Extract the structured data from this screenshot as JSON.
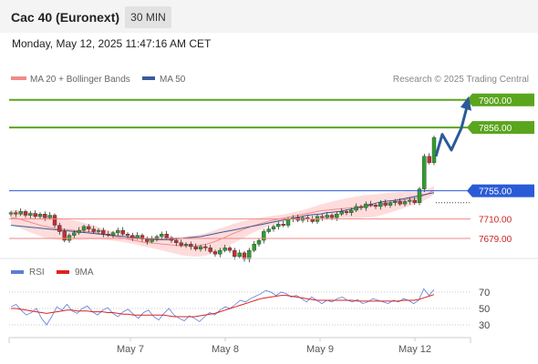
{
  "header": {
    "instrument": "Cac 40 (Euronext)",
    "timeframe": "30 MIN",
    "datetime": "Monday, May 12, 2025 11:47:16 AM CET"
  },
  "colors": {
    "bollinger_band": "#ffd6d6",
    "ma20": "#f28a8a",
    "ma50": "#3a5a9a",
    "candle_up": "#2e9e2e",
    "candle_down": "#c03030",
    "target_green": "#5aa51e",
    "pivot_blue": "#2a5bd7",
    "support_red": "#cc2222",
    "forecast_arrow": "#2a5a9a",
    "rsi_line": "#5b7fd6",
    "rsi_ma_line": "#dd2222"
  },
  "chart_data": [
    {
      "type": "candlestick",
      "legend_position": "top-left",
      "legend": [
        {
          "name": "MA 20 + Bollinger Bands",
          "color": "#f28a8a"
        },
        {
          "name": "MA 50",
          "color": "#3a5a9a"
        }
      ],
      "credit": "Research © 2025 Trading Central",
      "x_ticks": [
        "May 7",
        "May 8",
        "May 9",
        "May 12"
      ],
      "y_domain": [
        7650,
        7920
      ],
      "levels": [
        {
          "label": "7900.00",
          "value": 7900,
          "kind": "target",
          "style": "green-box"
        },
        {
          "label": "7856.00",
          "value": 7856,
          "kind": "target",
          "style": "green-box"
        },
        {
          "label": "7755.00",
          "value": 7755,
          "kind": "pivot",
          "style": "blue-box"
        },
        {
          "label": "7710.00",
          "value": 7710,
          "kind": "support",
          "style": "red-text"
        },
        {
          "label": "7679.00",
          "value": 7679,
          "kind": "support",
          "style": "red-text"
        }
      ],
      "candle_closes": [
        7720,
        7718,
        7722,
        7716,
        7719,
        7714,
        7718,
        7712,
        7716,
        7700,
        7690,
        7676,
        7684,
        7688,
        7692,
        7698,
        7694,
        7690,
        7692,
        7686,
        7684,
        7688,
        7692,
        7686,
        7684,
        7680,
        7684,
        7678,
        7674,
        7678,
        7682,
        7686,
        7680,
        7676,
        7672,
        7668,
        7670,
        7666,
        7662,
        7666,
        7664,
        7658,
        7654,
        7660,
        7664,
        7660,
        7650,
        7656,
        7646,
        7660,
        7670,
        7676,
        7690,
        7694,
        7698,
        7702,
        7700,
        7710,
        7712,
        7708,
        7712,
        7710,
        7706,
        7714,
        7712,
        7716,
        7712,
        7718,
        7722,
        7720,
        7724,
        7730,
        7728,
        7734,
        7732,
        7730,
        7736,
        7732,
        7736,
        7738,
        7734,
        7738,
        7740,
        7736,
        7758,
        7810,
        7800,
        7840
      ],
      "ma20": [
        7712,
        7711,
        7708,
        7705,
        7702,
        7699,
        7697,
        7695,
        7694,
        7693,
        7692,
        7691,
        7690,
        7689,
        7687,
        7685,
        7683,
        7681,
        7679,
        7677,
        7675,
        7673,
        7672,
        7671,
        7670,
        7669,
        7668,
        7667,
        7667,
        7667,
        7668,
        7670,
        7673,
        7677,
        7681,
        7686,
        7690,
        7694,
        7698,
        7701,
        7704,
        7707,
        7709,
        7711,
        7713,
        7715,
        7717,
        7719,
        7721,
        7723,
        7724,
        7725,
        7726,
        7727,
        7728,
        7729,
        7730,
        7731,
        7732,
        7734,
        7736,
        7738,
        7740,
        7742,
        7743,
        7746,
        7750,
        7756
      ],
      "ma50": [
        7700,
        7699,
        7698,
        7697,
        7696,
        7695,
        7694,
        7693,
        7692,
        7691,
        7690,
        7689,
        7688,
        7687,
        7686,
        7685,
        7684,
        7683,
        7682,
        7681,
        7680,
        7679,
        7678,
        7677,
        7677,
        7677,
        7678,
        7679,
        7680,
        7681,
        7682,
        7684,
        7686,
        7688,
        7690,
        7692,
        7694,
        7696,
        7698,
        7700,
        7702,
        7704,
        7706,
        7708,
        7710,
        7712,
        7714,
        7716,
        7717,
        7718,
        7720,
        7721,
        7722,
        7724,
        7726,
        7728,
        7730,
        7733,
        7736,
        7738,
        7739,
        7740,
        7742,
        7744,
        7746,
        7748,
        7750,
        7752
      ],
      "forecast_path": [
        7810,
        7845,
        7820,
        7855,
        7900
      ]
    },
    {
      "type": "line",
      "legend": [
        {
          "name": "RSI",
          "color": "#5b7fd6"
        },
        {
          "name": "9MA",
          "color": "#dd2222"
        }
      ],
      "y_ticks": [
        70,
        50,
        30
      ],
      "rsi": [
        52,
        55,
        48,
        42,
        45,
        50,
        38,
        30,
        40,
        52,
        48,
        55,
        47,
        44,
        50,
        53,
        46,
        42,
        48,
        51,
        44,
        40,
        46,
        49,
        43,
        38,
        45,
        48,
        40,
        36,
        44,
        50,
        42,
        38,
        35,
        41,
        38,
        34,
        40,
        45,
        42,
        48,
        52,
        50,
        55,
        60,
        58,
        62,
        65,
        68,
        72,
        70,
        66,
        70,
        68,
        64,
        66,
        62,
        58,
        64,
        60,
        56,
        60,
        58,
        62,
        64,
        60,
        58,
        61,
        56,
        58,
        62,
        60,
        58,
        56,
        60,
        58,
        62,
        60,
        56,
        60,
        74,
        66,
        73
      ],
      "rsi_ma9": [
        50,
        50,
        49,
        48,
        47,
        46,
        45,
        44,
        45,
        46,
        47,
        48,
        48,
        47,
        47,
        47,
        46,
        46,
        46,
        45,
        45,
        44,
        43,
        43,
        42,
        42,
        42,
        42,
        42,
        42,
        42,
        41,
        40,
        40,
        40,
        40,
        40,
        41,
        42,
        43,
        44,
        46,
        48,
        50,
        52,
        54,
        56,
        58,
        60,
        62,
        63,
        64,
        65,
        66,
        66,
        65,
        64,
        63,
        62,
        61,
        60,
        60,
        60,
        60,
        60,
        60,
        60,
        60,
        59,
        59,
        59,
        59,
        59,
        59,
        59,
        59,
        59,
        60,
        60,
        60,
        61,
        63,
        65,
        67
      ]
    }
  ]
}
